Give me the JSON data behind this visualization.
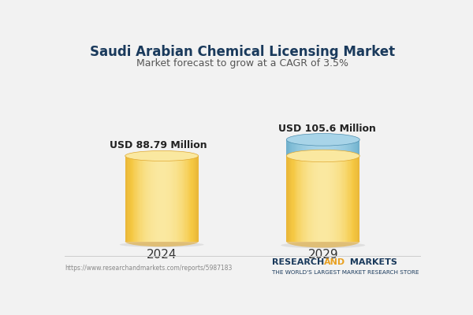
{
  "title": "Saudi Arabian Chemical Licensing Market",
  "subtitle": "Market forecast to grow at a CAGR of 3.5%",
  "categories": [
    "2024",
    "2029"
  ],
  "values": [
    88.79,
    105.6
  ],
  "labels": [
    "USD 88.79 Million",
    "USD 105.6 Million"
  ],
  "cylinder_color_mid": "#F5C842",
  "cylinder_color_light": "#FAE8A0",
  "cylinder_color_dark": "#E0A830",
  "cylinder_color_edge": "#D4950A",
  "blue_cap_mid": "#7BBAD4",
  "blue_cap_light": "#A8D4E8",
  "blue_cap_dark": "#5090B0",
  "background_color": "#F2F2F2",
  "title_color": "#1A3A5C",
  "subtitle_color": "#555555",
  "label_color": "#222222",
  "url_text": "https://www.researchandmarkets.com/reports/5987183",
  "brand_color_main": "#1A3A5C",
  "brand_color_highlight": "#E8A020",
  "brand_line2": "THE WORLD'S LARGEST MARKET RESEARCH STORE"
}
